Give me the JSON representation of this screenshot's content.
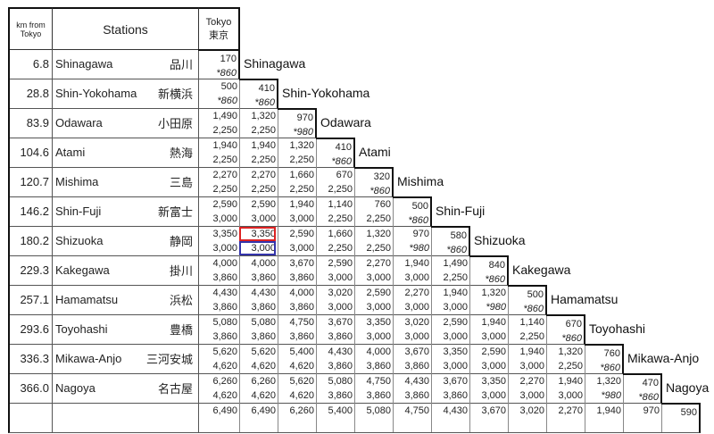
{
  "header": {
    "km_label": "km from Tokyo",
    "stations_label": "Stations",
    "tokyo_en": "Tokyo",
    "tokyo_jp": "東京"
  },
  "highlight": {
    "row": 7,
    "col": 1,
    "top_color": "#d22222",
    "bottom_color": "#3333aa"
  },
  "rows": [
    {
      "km": "6.8",
      "name": "Shinagawa",
      "jp": "品川",
      "cells": [
        [
          "170",
          "*860"
        ]
      ]
    },
    {
      "km": "28.8",
      "name": "Shin-Yokohama",
      "jp": "新横浜",
      "cells": [
        [
          "500",
          "*860"
        ],
        [
          "410",
          "*860"
        ]
      ]
    },
    {
      "km": "83.9",
      "name": "Odawara",
      "jp": "小田原",
      "cells": [
        [
          "1,490",
          "2,250"
        ],
        [
          "1,320",
          "2,250"
        ],
        [
          "970",
          "*980"
        ]
      ]
    },
    {
      "km": "104.6",
      "name": "Atami",
      "jp": "熱海",
      "cells": [
        [
          "1,940",
          "2,250"
        ],
        [
          "1,940",
          "2,250"
        ],
        [
          "1,320",
          "2,250"
        ],
        [
          "410",
          "*860"
        ]
      ]
    },
    {
      "km": "120.7",
      "name": "Mishima",
      "jp": "三島",
      "cells": [
        [
          "2,270",
          "2,250"
        ],
        [
          "2,270",
          "2,250"
        ],
        [
          "1,660",
          "2,250"
        ],
        [
          "670",
          "2,250"
        ],
        [
          "320",
          "*860"
        ]
      ]
    },
    {
      "km": "146.2",
      "name": "Shin-Fuji",
      "jp": "新富士",
      "cells": [
        [
          "2,590",
          "3,000"
        ],
        [
          "2,590",
          "3,000"
        ],
        [
          "1,940",
          "3,000"
        ],
        [
          "1,140",
          "2,250"
        ],
        [
          "760",
          "2,250"
        ],
        [
          "500",
          "*860"
        ]
      ]
    },
    {
      "km": "180.2",
      "name": "Shizuoka",
      "jp": "静岡",
      "cells": [
        [
          "3,350",
          "3,000"
        ],
        [
          "3,350",
          "3,000"
        ],
        [
          "2,590",
          "3,000"
        ],
        [
          "1,660",
          "2,250"
        ],
        [
          "1,320",
          "2,250"
        ],
        [
          "970",
          "*980"
        ],
        [
          "580",
          "*860"
        ]
      ]
    },
    {
      "km": "229.3",
      "name": "Kakegawa",
      "jp": "掛川",
      "cells": [
        [
          "4,000",
          "3,860"
        ],
        [
          "4,000",
          "3,860"
        ],
        [
          "3,670",
          "3,860"
        ],
        [
          "2,590",
          "3,000"
        ],
        [
          "2,270",
          "3,000"
        ],
        [
          "1,940",
          "3,000"
        ],
        [
          "1,490",
          "2,250"
        ],
        [
          "840",
          "*860"
        ]
      ]
    },
    {
      "km": "257.1",
      "name": "Hamamatsu",
      "jp": "浜松",
      "cells": [
        [
          "4,430",
          "3,860"
        ],
        [
          "4,430",
          "3,860"
        ],
        [
          "4,000",
          "3,860"
        ],
        [
          "3,020",
          "3,000"
        ],
        [
          "2,590",
          "3,000"
        ],
        [
          "2,270",
          "3,000"
        ],
        [
          "1,940",
          "3,000"
        ],
        [
          "1,320",
          "*980"
        ],
        [
          "500",
          "*860"
        ]
      ]
    },
    {
      "km": "293.6",
      "name": "Toyohashi",
      "jp": "豊橋",
      "cells": [
        [
          "5,080",
          "3,860"
        ],
        [
          "5,080",
          "3,860"
        ],
        [
          "4,750",
          "3,860"
        ],
        [
          "3,670",
          "3,860"
        ],
        [
          "3,350",
          "3,000"
        ],
        [
          "3,020",
          "3,000"
        ],
        [
          "2,590",
          "3,000"
        ],
        [
          "1,940",
          "3,000"
        ],
        [
          "1,140",
          "2,250"
        ],
        [
          "670",
          "*860"
        ]
      ]
    },
    {
      "km": "336.3",
      "name": "Mikawa-Anjo",
      "jp": "三河安城",
      "cells": [
        [
          "5,620",
          "4,620"
        ],
        [
          "5,620",
          "4,620"
        ],
        [
          "5,400",
          "4,620"
        ],
        [
          "4,430",
          "3,860"
        ],
        [
          "4,000",
          "3,860"
        ],
        [
          "3,670",
          "3,860"
        ],
        [
          "3,350",
          "3,000"
        ],
        [
          "2,590",
          "3,000"
        ],
        [
          "1,940",
          "3,000"
        ],
        [
          "1,320",
          "2,250"
        ],
        [
          "760",
          "*860"
        ]
      ]
    },
    {
      "km": "366.0",
      "name": "Nagoya",
      "jp": "名古屋",
      "cells": [
        [
          "6,260",
          "4,620"
        ],
        [
          "6,260",
          "4,620"
        ],
        [
          "5,620",
          "4,620"
        ],
        [
          "5,080",
          "3,860"
        ],
        [
          "4,750",
          "3,860"
        ],
        [
          "4,430",
          "3,860"
        ],
        [
          "3,670",
          "3,860"
        ],
        [
          "3,350",
          "3,000"
        ],
        [
          "2,270",
          "3,000"
        ],
        [
          "1,940",
          "3,000"
        ],
        [
          "1,320",
          "*980"
        ],
        [
          "470",
          "*860"
        ]
      ]
    },
    {
      "km": "",
      "name": "",
      "jp": "",
      "cells": [
        [
          "6,490",
          ""
        ],
        [
          "6,490",
          ""
        ],
        [
          "6,260",
          ""
        ],
        [
          "5,400",
          ""
        ],
        [
          "5,080",
          ""
        ],
        [
          "4,750",
          ""
        ],
        [
          "4,430",
          ""
        ],
        [
          "3,670",
          ""
        ],
        [
          "3,020",
          ""
        ],
        [
          "2,270",
          ""
        ],
        [
          "1,940",
          ""
        ],
        [
          "970",
          ""
        ],
        [
          "590",
          ""
        ]
      ]
    }
  ]
}
